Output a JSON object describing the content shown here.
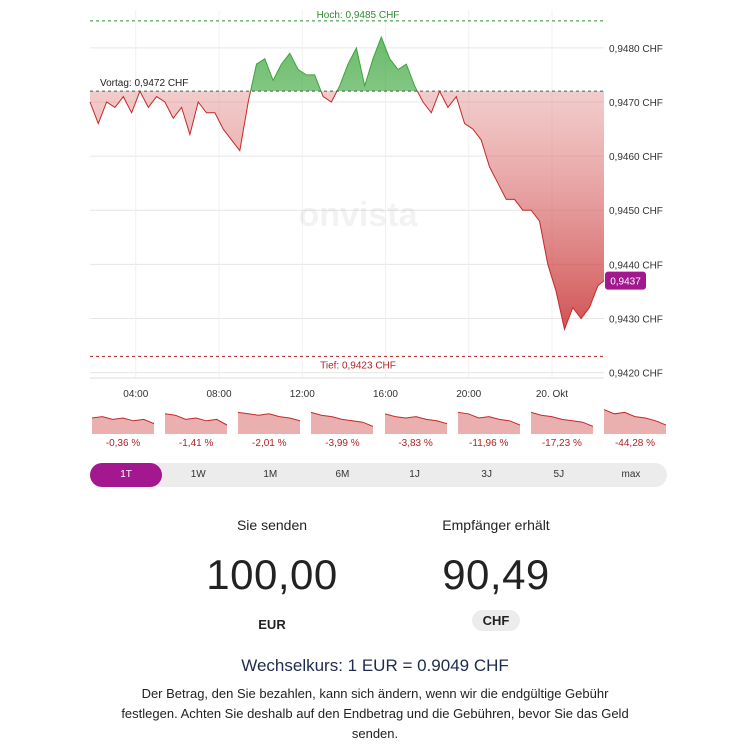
{
  "chart_data": {
    "type": "area",
    "watermark": "onvista",
    "x_ticks": [
      "04:00",
      "08:00",
      "12:00",
      "16:00",
      "20:00",
      "20. Okt"
    ],
    "y_ticks": [
      "0,9480 CHF",
      "0,9470 CHF",
      "0,9460 CHF",
      "0,9450 CHF",
      "0,9440 CHF",
      "0,9430 CHF",
      "0,9420 CHF"
    ],
    "ylim": [
      0.9419,
      0.9487
    ],
    "x_range_hours": [
      1.8,
      26.5
    ],
    "reference_lines": {
      "high": {
        "value": 0.9485,
        "label": "Hoch: 0,9485 CHF",
        "color": "#2e8b2e"
      },
      "previous_close": {
        "value": 0.9472,
        "label": "Vortag: 0,9472 CHF",
        "color": "#555555"
      },
      "low": {
        "value": 0.9423,
        "label": "Tief: 0,9423 CHF",
        "color": "#b22222"
      }
    },
    "last_value": {
      "value": 0.9437,
      "label": "0,9437",
      "color": "#a3178f"
    },
    "up_color": "#3aa53a",
    "down_color": "#c62828",
    "x_hours": [
      1.8,
      2.2,
      2.6,
      3.0,
      3.4,
      3.8,
      4.2,
      4.6,
      5.0,
      5.4,
      5.8,
      6.2,
      6.6,
      7.0,
      7.4,
      7.8,
      8.2,
      8.6,
      9.0,
      9.4,
      9.8,
      10.2,
      10.6,
      11.0,
      11.4,
      11.8,
      12.2,
      12.6,
      13.0,
      13.4,
      13.8,
      14.2,
      14.6,
      15.0,
      15.4,
      15.8,
      16.2,
      16.6,
      17.0,
      17.4,
      17.8,
      18.2,
      18.6,
      19.0,
      19.4,
      19.8,
      20.2,
      20.6,
      21.0,
      21.4,
      21.8,
      22.2,
      22.6,
      23.0,
      23.4,
      23.8,
      24.2,
      24.6,
      25.0,
      25.4,
      25.8,
      26.2,
      26.5
    ],
    "values": [
      0.947,
      0.9466,
      0.947,
      0.9469,
      0.9471,
      0.9468,
      0.9472,
      0.9469,
      0.9471,
      0.947,
      0.9467,
      0.9469,
      0.9464,
      0.947,
      0.9468,
      0.9468,
      0.9465,
      0.9463,
      0.9461,
      0.947,
      0.9477,
      0.9478,
      0.9474,
      0.9477,
      0.9479,
      0.9476,
      0.9475,
      0.9475,
      0.9471,
      0.947,
      0.9473,
      0.9477,
      0.948,
      0.9473,
      0.9478,
      0.9482,
      0.9478,
      0.9476,
      0.9477,
      0.9473,
      0.947,
      0.9468,
      0.9472,
      0.9469,
      0.9471,
      0.9466,
      0.9465,
      0.9463,
      0.9458,
      0.9455,
      0.9452,
      0.9452,
      0.945,
      0.945,
      0.9448,
      0.944,
      0.9435,
      0.9428,
      0.9432,
      0.943,
      0.9432,
      0.9436,
      0.9437
    ]
  },
  "period_changes": [
    {
      "label": "-0,36 %",
      "trend": [
        0.5,
        0.45,
        0.55,
        0.5,
        0.6,
        0.55,
        0.7
      ]
    },
    {
      "label": "-1,41 %",
      "trend": [
        0.35,
        0.4,
        0.55,
        0.5,
        0.6,
        0.55,
        0.75
      ]
    },
    {
      "label": "-2,01 %",
      "trend": [
        0.3,
        0.35,
        0.4,
        0.35,
        0.45,
        0.5,
        0.6
      ]
    },
    {
      "label": "-3,99 %",
      "trend": [
        0.3,
        0.4,
        0.45,
        0.55,
        0.6,
        0.65,
        0.8
      ]
    },
    {
      "label": "-3,83 %",
      "trend": [
        0.35,
        0.45,
        0.5,
        0.45,
        0.55,
        0.6,
        0.7
      ]
    },
    {
      "label": "-11,96 %",
      "trend": [
        0.3,
        0.35,
        0.5,
        0.45,
        0.55,
        0.6,
        0.75
      ]
    },
    {
      "label": "-17,23 %",
      "trend": [
        0.3,
        0.4,
        0.45,
        0.55,
        0.6,
        0.65,
        0.8
      ]
    },
    {
      "label": "-44,28 %",
      "trend": [
        0.2,
        0.35,
        0.3,
        0.45,
        0.5,
        0.6,
        0.75
      ]
    }
  ],
  "range_tabs": [
    "1T",
    "1W",
    "1M",
    "6M",
    "1J",
    "3J",
    "5J",
    "max"
  ],
  "active_range": "1T",
  "transfer": {
    "send_label": "Sie senden",
    "receive_label": "Empfänger erhält",
    "send_amount": "100,00",
    "receive_amount": "90,49",
    "send_currency": "EUR",
    "receive_currency": "CHF"
  },
  "rate_text": "Wechselkurs: 1 EUR = 0.9049 CHF",
  "disclaimer": "Der Betrag, den Sie bezahlen, kann sich ändern, wenn wir die endgültige Gebühr festlegen. Achten Sie deshalb auf den Endbetrag und die Gebühren, bevor Sie das Geld senden."
}
